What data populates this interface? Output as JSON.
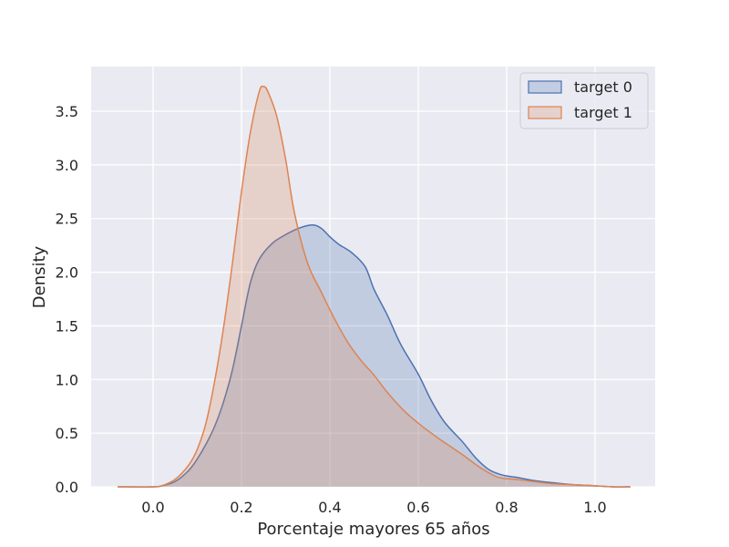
{
  "chart_data": {
    "type": "area",
    "xlabel": "Porcentaje mayores 65 años",
    "ylabel": "Density",
    "xlim": [
      -0.14,
      1.14
    ],
    "ylim": [
      0,
      3.9
    ],
    "xticks": [
      "0.0",
      "0.2",
      "0.4",
      "0.6",
      "0.8",
      "1.0"
    ],
    "yticks": [
      "0.0",
      "0.5",
      "1.0",
      "1.5",
      "2.0",
      "2.5",
      "3.0",
      "3.5"
    ],
    "grid": true,
    "legend_position": "top-right",
    "background_color": "#eaeaf2",
    "series": [
      {
        "name": "target 0",
        "color": "#4c72b0",
        "fill_color": "#4c72b0",
        "fill_opacity": 0.25,
        "points": [
          [
            -0.08,
            0.0
          ],
          [
            0.0,
            0.0
          ],
          [
            0.02,
            0.01
          ],
          [
            0.05,
            0.05
          ],
          [
            0.08,
            0.15
          ],
          [
            0.1,
            0.26
          ],
          [
            0.12,
            0.4
          ],
          [
            0.14,
            0.57
          ],
          [
            0.16,
            0.8
          ],
          [
            0.18,
            1.1
          ],
          [
            0.2,
            1.5
          ],
          [
            0.22,
            1.9
          ],
          [
            0.24,
            2.12
          ],
          [
            0.27,
            2.27
          ],
          [
            0.3,
            2.35
          ],
          [
            0.33,
            2.41
          ],
          [
            0.36,
            2.44
          ],
          [
            0.38,
            2.41
          ],
          [
            0.4,
            2.33
          ],
          [
            0.42,
            2.26
          ],
          [
            0.45,
            2.18
          ],
          [
            0.48,
            2.05
          ],
          [
            0.5,
            1.84
          ],
          [
            0.53,
            1.6
          ],
          [
            0.56,
            1.33
          ],
          [
            0.6,
            1.05
          ],
          [
            0.63,
            0.8
          ],
          [
            0.66,
            0.6
          ],
          [
            0.7,
            0.42
          ],
          [
            0.73,
            0.27
          ],
          [
            0.76,
            0.16
          ],
          [
            0.79,
            0.11
          ],
          [
            0.82,
            0.09
          ],
          [
            0.86,
            0.06
          ],
          [
            0.9,
            0.04
          ],
          [
            0.95,
            0.02
          ],
          [
            1.0,
            0.01
          ],
          [
            1.04,
            0.0
          ],
          [
            1.08,
            0.0
          ]
        ]
      },
      {
        "name": "target 1",
        "color": "#dd8452",
        "fill_color": "#dd8452",
        "fill_opacity": 0.25,
        "points": [
          [
            -0.08,
            0.0
          ],
          [
            0.0,
            0.0
          ],
          [
            0.02,
            0.01
          ],
          [
            0.05,
            0.07
          ],
          [
            0.08,
            0.2
          ],
          [
            0.1,
            0.35
          ],
          [
            0.12,
            0.6
          ],
          [
            0.14,
            1.0
          ],
          [
            0.16,
            1.5
          ],
          [
            0.18,
            2.1
          ],
          [
            0.2,
            2.75
          ],
          [
            0.22,
            3.3
          ],
          [
            0.24,
            3.68
          ],
          [
            0.25,
            3.73
          ],
          [
            0.26,
            3.68
          ],
          [
            0.28,
            3.45
          ],
          [
            0.3,
            3.05
          ],
          [
            0.32,
            2.55
          ],
          [
            0.35,
            2.08
          ],
          [
            0.38,
            1.82
          ],
          [
            0.41,
            1.57
          ],
          [
            0.44,
            1.35
          ],
          [
            0.47,
            1.18
          ],
          [
            0.5,
            1.04
          ],
          [
            0.53,
            0.88
          ],
          [
            0.57,
            0.7
          ],
          [
            0.61,
            0.56
          ],
          [
            0.65,
            0.44
          ],
          [
            0.7,
            0.3
          ],
          [
            0.74,
            0.18
          ],
          [
            0.78,
            0.09
          ],
          [
            0.82,
            0.07
          ],
          [
            0.86,
            0.05
          ],
          [
            0.9,
            0.03
          ],
          [
            0.95,
            0.02
          ],
          [
            1.0,
            0.01
          ],
          [
            1.04,
            0.0
          ],
          [
            1.08,
            0.0
          ]
        ]
      }
    ]
  }
}
